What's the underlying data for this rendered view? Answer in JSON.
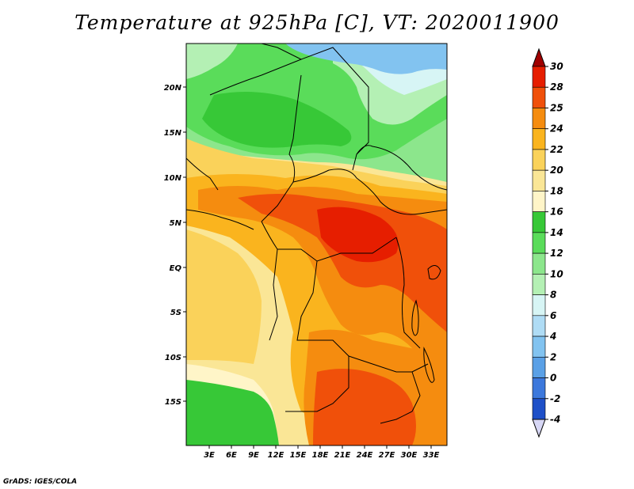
{
  "title": "Temperature at 925hPa [C], VT: 2020011900",
  "credit": "GrADS: IGES/COLA",
  "map": {
    "region": "Central Africa",
    "lat_labels": [
      "20N",
      "15N",
      "10N",
      "5N",
      "EQ",
      "5S",
      "10S",
      "15S"
    ],
    "lon_labels": [
      "3E",
      "6E",
      "9E",
      "12E",
      "15E",
      "18E",
      "21E",
      "24E",
      "27E",
      "30E",
      "33E"
    ]
  },
  "colorbar": {
    "levels": [
      "30",
      "28",
      "25",
      "24",
      "22",
      "20",
      "18",
      "16",
      "14",
      "12",
      "10",
      "8",
      "6",
      "4",
      "2",
      "0",
      "-2",
      "-4"
    ],
    "colors": [
      "#a00000",
      "#e61e00",
      "#f0500a",
      "#f58c0f",
      "#fab41e",
      "#fad25a",
      "#fae696",
      "#fff5c8",
      "#37c837",
      "#5adc5a",
      "#8ce68c",
      "#b4f0b4",
      "#d7f5f5",
      "#afdcf5",
      "#82c3f0",
      "#5aa0e6",
      "#3c78dc",
      "#1e50c8",
      "#0a28a0",
      "#0a0a64"
    ],
    "under_color": "#d7d7f5"
  }
}
